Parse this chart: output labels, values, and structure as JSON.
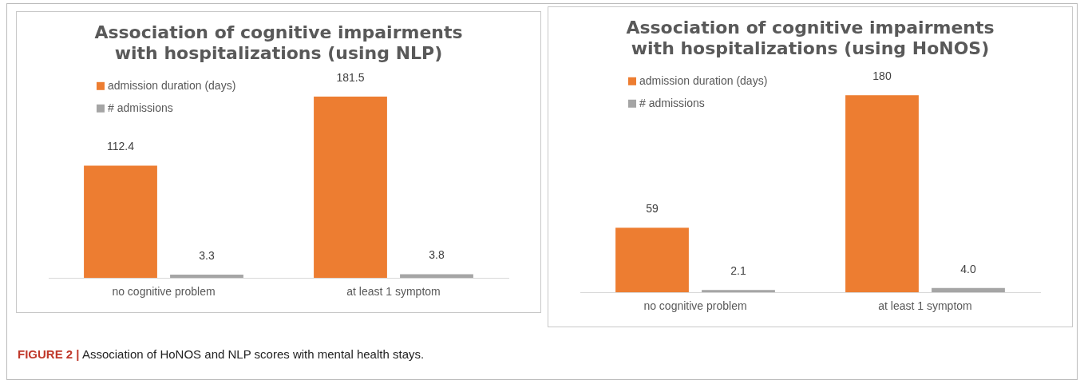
{
  "chart_data": [
    {
      "type": "bar",
      "title": "Association of cognitive impairments with hospitalizations (using NLP)",
      "categories": [
        "no cognitive problem",
        "at least 1 symptom"
      ],
      "legend": "top left",
      "grid": false,
      "series": [
        {
          "name": "admission duration (days)",
          "color": "#ed7d31",
          "values": [
            112.4,
            181.5
          ],
          "value_labels": [
            "112.4",
            "181.5"
          ]
        },
        {
          "name": "# admissions",
          "color": "#a5a5a5",
          "values": [
            3.3,
            3.8
          ],
          "value_labels": [
            "3.3",
            "3.8"
          ]
        }
      ]
    },
    {
      "type": "bar",
      "title": "Association of cognitive impairments with hospitalizations (using HoNOS)",
      "categories": [
        "no cognitive problem",
        "at least 1 symptom"
      ],
      "legend": "top left",
      "grid": false,
      "series": [
        {
          "name": "admission duration (days)",
          "color": "#ed7d31",
          "values": [
            59,
            180
          ],
          "value_labels": [
            "59",
            "180"
          ]
        },
        {
          "name": "# admissions",
          "color": "#a5a5a5",
          "values": [
            2.1,
            4.0
          ],
          "value_labels": [
            "2.1",
            "4.0"
          ]
        }
      ],
      "annotations": [
        "FIGURE 2 | Association of HoNOS and NLP scores with mental health stays."
      ]
    }
  ]
}
